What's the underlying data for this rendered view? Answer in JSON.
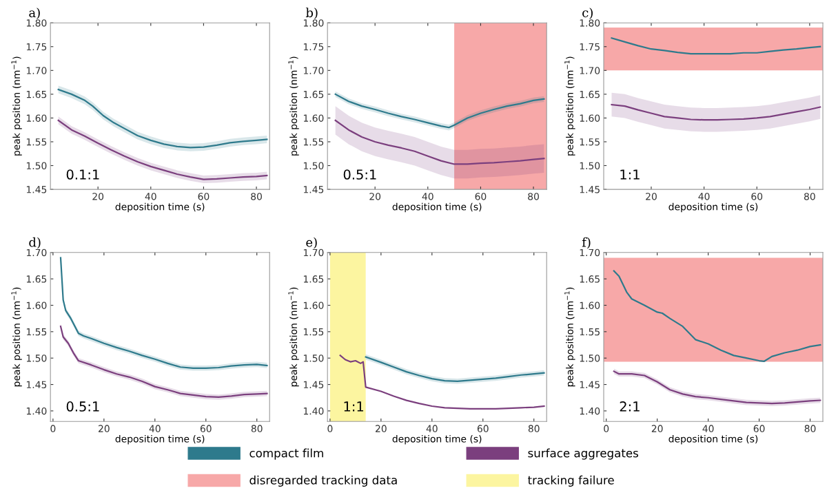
{
  "chart_data": [
    {
      "type": "line",
      "title": "a)",
      "xlabel": "deposition time (s)",
      "ylabel": "peak position (nm$^{−1}$)",
      "xlim": [
        2,
        85
      ],
      "xticks": [
        20,
        40,
        60,
        80
      ],
      "ylim": [
        1.45,
        1.8
      ],
      "yticks": [
        {
          "value": 1.45,
          "label": "1.45"
        },
        {
          "value": 1.5,
          "label": "1.50"
        },
        {
          "value": 1.55,
          "label": "1.55"
        },
        {
          "value": 1.6,
          "label": "1.60"
        },
        {
          "value": 1.65,
          "label": "1.65"
        },
        {
          "value": 1.7,
          "label": "1.70"
        },
        {
          "value": 1.75,
          "label": "1.75"
        },
        {
          "value": 1.8,
          "label": "1.80"
        }
      ],
      "grid": false,
      "marker": "none",
      "legend": "bottom",
      "annotations": [
        "0.1:1"
      ],
      "series": [
        {
          "name": "compact film",
          "color": "#2e7a8c",
          "x": [
            5,
            10,
            15,
            18,
            22,
            26,
            30,
            35,
            40,
            45,
            50,
            55,
            60,
            65,
            70,
            75,
            80,
            84
          ],
          "values": [
            1.66,
            1.65,
            1.637,
            1.625,
            1.605,
            1.59,
            1.578,
            1.563,
            1.553,
            1.545,
            1.54,
            1.538,
            1.539,
            1.543,
            1.548,
            1.551,
            1.553,
            1.555
          ],
          "lower": [
            1.652,
            1.642,
            1.629,
            1.617,
            1.597,
            1.582,
            1.57,
            1.555,
            1.545,
            1.537,
            1.532,
            1.53,
            1.531,
            1.535,
            1.54,
            1.543,
            1.545,
            1.547
          ],
          "upper": [
            1.668,
            1.658,
            1.645,
            1.633,
            1.613,
            1.598,
            1.586,
            1.571,
            1.561,
            1.553,
            1.548,
            1.546,
            1.547,
            1.551,
            1.556,
            1.559,
            1.561,
            1.563
          ]
        },
        {
          "name": "surface aggregates",
          "color": "#7b3f7e",
          "x": [
            5,
            10,
            15,
            20,
            25,
            30,
            35,
            40,
            45,
            50,
            55,
            60,
            65,
            70,
            75,
            80,
            84
          ],
          "values": [
            1.595,
            1.575,
            1.562,
            1.547,
            1.533,
            1.52,
            1.508,
            1.498,
            1.49,
            1.482,
            1.476,
            1.471,
            1.472,
            1.474,
            1.476,
            1.477,
            1.479
          ],
          "lower": [
            1.587,
            1.567,
            1.554,
            1.539,
            1.525,
            1.512,
            1.5,
            1.49,
            1.482,
            1.474,
            1.468,
            1.463,
            1.464,
            1.466,
            1.468,
            1.469,
            1.471
          ],
          "upper": [
            1.603,
            1.583,
            1.57,
            1.555,
            1.541,
            1.528,
            1.516,
            1.506,
            1.498,
            1.49,
            1.484,
            1.479,
            1.48,
            1.482,
            1.484,
            1.485,
            1.487
          ]
        }
      ]
    },
    {
      "type": "line",
      "title": "b)",
      "xlabel": "deposition time (s)",
      "ylabel": "peak position (nm$^{−1}$)",
      "xlim": [
        2,
        85
      ],
      "xticks": [
        20,
        40,
        60,
        80
      ],
      "ylim": [
        1.45,
        1.8
      ],
      "yticks": [
        {
          "value": 1.45,
          "label": "1.45"
        },
        {
          "value": 1.5,
          "label": "1.50"
        },
        {
          "value": 1.55,
          "label": "1.55"
        },
        {
          "value": 1.6,
          "label": "1.60"
        },
        {
          "value": 1.65,
          "label": "1.65"
        },
        {
          "value": 1.7,
          "label": "1.70"
        },
        {
          "value": 1.75,
          "label": "1.75"
        },
        {
          "value": 1.8,
          "label": "1.80"
        }
      ],
      "grid": false,
      "marker": "none",
      "annotations": [
        "0.5:1"
      ],
      "bands": [
        {
          "axis": "x",
          "from": 50,
          "to": 85,
          "color": "#f7a8a8",
          "label": "disregarded tracking data"
        }
      ],
      "series": [
        {
          "color": "#2e7a8c",
          "x": [
            5,
            10,
            15,
            20,
            25,
            30,
            35,
            40,
            45,
            48,
            50,
            55,
            60,
            65,
            70,
            75,
            80,
            84
          ],
          "values": [
            1.65,
            1.635,
            1.625,
            1.618,
            1.61,
            1.603,
            1.597,
            1.59,
            1.583,
            1.58,
            1.585,
            1.6,
            1.61,
            1.618,
            1.625,
            1.63,
            1.637,
            1.64
          ],
          "lower": [
            1.644,
            1.629,
            1.619,
            1.612,
            1.604,
            1.597,
            1.591,
            1.584,
            1.577,
            1.574,
            1.579,
            1.594,
            1.604,
            1.612,
            1.619,
            1.624,
            1.631,
            1.634
          ],
          "upper": [
            1.656,
            1.641,
            1.631,
            1.624,
            1.616,
            1.609,
            1.603,
            1.596,
            1.589,
            1.586,
            1.591,
            1.606,
            1.616,
            1.624,
            1.631,
            1.636,
            1.643,
            1.646
          ]
        },
        {
          "color": "#7b3f7e",
          "x": [
            5,
            10,
            15,
            20,
            25,
            30,
            35,
            40,
            45,
            50,
            55,
            60,
            65,
            70,
            75,
            80,
            84
          ],
          "values": [
            1.595,
            1.575,
            1.56,
            1.55,
            1.543,
            1.537,
            1.53,
            1.52,
            1.51,
            1.503,
            1.503,
            1.505,
            1.506,
            1.508,
            1.51,
            1.513,
            1.515
          ],
          "lower": [
            1.565,
            1.545,
            1.53,
            1.52,
            1.513,
            1.507,
            1.5,
            1.49,
            1.48,
            1.473,
            1.473,
            1.475,
            1.476,
            1.478,
            1.48,
            1.483,
            1.485
          ],
          "upper": [
            1.625,
            1.605,
            1.59,
            1.58,
            1.573,
            1.567,
            1.56,
            1.55,
            1.54,
            1.533,
            1.533,
            1.535,
            1.536,
            1.538,
            1.54,
            1.543,
            1.545
          ]
        }
      ]
    },
    {
      "type": "line",
      "title": "c)",
      "xlabel": "deposition time (s)",
      "ylabel": "peak position (nm$^{−1}$)",
      "xlim": [
        2,
        85
      ],
      "xticks": [
        20,
        40,
        60,
        80
      ],
      "ylim": [
        1.45,
        1.8
      ],
      "yticks": [
        {
          "value": 1.45,
          "label": "1.45"
        },
        {
          "value": 1.5,
          "label": "1.50"
        },
        {
          "value": 1.55,
          "label": "1.55"
        },
        {
          "value": 1.6,
          "label": "1.60"
        },
        {
          "value": 1.65,
          "label": "1.65"
        },
        {
          "value": 1.7,
          "label": "1.70"
        },
        {
          "value": 1.75,
          "label": "1.75"
        },
        {
          "value": 1.8,
          "label": "1.80"
        }
      ],
      "grid": false,
      "marker": "none",
      "annotations": [
        "1:1"
      ],
      "bands": [
        {
          "axis": "y",
          "from": 1.7,
          "to": 1.79,
          "color": "#f7a8a8"
        }
      ],
      "series": [
        {
          "color": "#2e7a8c",
          "x": [
            5,
            10,
            15,
            20,
            25,
            30,
            35,
            40,
            45,
            50,
            55,
            60,
            65,
            70,
            75,
            80,
            84
          ],
          "values": [
            1.768,
            1.76,
            1.752,
            1.745,
            1.742,
            1.738,
            1.735,
            1.735,
            1.735,
            1.735,
            1.737,
            1.737,
            1.74,
            1.743,
            1.745,
            1.748,
            1.75
          ]
        },
        {
          "color": "#7b3f7e",
          "x": [
            5,
            10,
            15,
            20,
            25,
            30,
            35,
            40,
            45,
            50,
            55,
            60,
            65,
            70,
            75,
            80,
            84
          ],
          "values": [
            1.628,
            1.625,
            1.617,
            1.61,
            1.603,
            1.6,
            1.597,
            1.596,
            1.596,
            1.597,
            1.598,
            1.6,
            1.603,
            1.608,
            1.613,
            1.618,
            1.623
          ],
          "lower": [
            1.603,
            1.6,
            1.592,
            1.585,
            1.578,
            1.575,
            1.572,
            1.571,
            1.571,
            1.572,
            1.573,
            1.575,
            1.578,
            1.583,
            1.588,
            1.593,
            1.598
          ],
          "upper": [
            1.653,
            1.65,
            1.642,
            1.635,
            1.628,
            1.625,
            1.622,
            1.621,
            1.621,
            1.622,
            1.623,
            1.625,
            1.628,
            1.633,
            1.638,
            1.643,
            1.648
          ]
        }
      ]
    },
    {
      "type": "line",
      "title": "d)",
      "xlabel": "deposition time (s)",
      "ylabel": "peak position (nm$^{−1}$)",
      "xlim": [
        -1,
        85
      ],
      "xticks": [
        0,
        20,
        40,
        60,
        80
      ],
      "ylim": [
        1.38,
        1.7
      ],
      "yticks": [
        {
          "value": 1.4,
          "label": "1.40"
        },
        {
          "value": 1.45,
          "label": "1.45"
        },
        {
          "value": 1.5,
          "label": "1.50"
        },
        {
          "value": 1.55,
          "label": "1.55"
        },
        {
          "value": 1.6,
          "label": "1.60"
        },
        {
          "value": 1.65,
          "label": "1.65"
        },
        {
          "value": 1.7,
          "label": "1.70"
        }
      ],
      "grid": false,
      "marker": "none",
      "annotations": [
        "0.5:1"
      ],
      "series": [
        {
          "color": "#2e7a8c",
          "x": [
            3,
            4,
            5,
            7,
            10,
            12,
            15,
            20,
            25,
            30,
            35,
            40,
            45,
            50,
            55,
            60,
            65,
            70,
            75,
            80,
            84
          ],
          "values": [
            1.69,
            1.61,
            1.59,
            1.575,
            1.547,
            1.542,
            1.537,
            1.528,
            1.52,
            1.513,
            1.505,
            1.498,
            1.49,
            1.483,
            1.481,
            1.481,
            1.482,
            1.485,
            1.487,
            1.488,
            1.486
          ],
          "lower": [
            1.685,
            1.605,
            1.585,
            1.57,
            1.542,
            1.537,
            1.532,
            1.523,
            1.515,
            1.508,
            1.5,
            1.493,
            1.485,
            1.478,
            1.476,
            1.476,
            1.477,
            1.48,
            1.482,
            1.483,
            1.481
          ],
          "upper": [
            1.695,
            1.615,
            1.595,
            1.58,
            1.552,
            1.547,
            1.542,
            1.533,
            1.525,
            1.518,
            1.51,
            1.503,
            1.495,
            1.488,
            1.486,
            1.486,
            1.487,
            1.49,
            1.492,
            1.493,
            1.491
          ]
        },
        {
          "color": "#7b3f7e",
          "x": [
            3,
            4,
            6,
            8,
            10,
            15,
            20,
            25,
            30,
            35,
            40,
            45,
            50,
            55,
            60,
            65,
            70,
            75,
            80,
            84
          ],
          "values": [
            1.56,
            1.54,
            1.528,
            1.51,
            1.495,
            1.487,
            1.478,
            1.47,
            1.464,
            1.456,
            1.446,
            1.44,
            1.433,
            1.43,
            1.427,
            1.426,
            1.428,
            1.431,
            1.432,
            1.433
          ],
          "lower": [
            1.555,
            1.535,
            1.523,
            1.505,
            1.49,
            1.482,
            1.473,
            1.465,
            1.459,
            1.451,
            1.441,
            1.435,
            1.428,
            1.425,
            1.422,
            1.421,
            1.423,
            1.426,
            1.427,
            1.428
          ],
          "upper": [
            1.565,
            1.545,
            1.533,
            1.515,
            1.5,
            1.492,
            1.483,
            1.475,
            1.469,
            1.461,
            1.451,
            1.445,
            1.438,
            1.435,
            1.432,
            1.431,
            1.433,
            1.436,
            1.437,
            1.438
          ]
        }
      ]
    },
    {
      "type": "line",
      "title": "e)",
      "xlabel": "deposition time (s)",
      "ylabel": "peak position (nm$^{−1}$)",
      "xlim": [
        -1,
        85
      ],
      "xticks": [
        0,
        20,
        40,
        60,
        80
      ],
      "ylim": [
        1.38,
        1.7
      ],
      "yticks": [
        {
          "value": 1.4,
          "label": "1.40"
        },
        {
          "value": 1.45,
          "label": "1.45"
        },
        {
          "value": 1.5,
          "label": "1.50"
        },
        {
          "value": 1.55,
          "label": "1.55"
        },
        {
          "value": 1.6,
          "label": "1.60"
        },
        {
          "value": 1.65,
          "label": "1.65"
        },
        {
          "value": 1.7,
          "label": "1.70"
        }
      ],
      "grid": false,
      "marker": "none",
      "annotations": [
        "1:1"
      ],
      "bands": [
        {
          "axis": "x",
          "from": 0,
          "to": 14,
          "color": "#fcf5a0",
          "label": "tracking failure"
        }
      ],
      "series": [
        {
          "color": "#2e7a8c",
          "x": [
            14,
            20,
            25,
            30,
            35,
            40,
            45,
            50,
            55,
            60,
            65,
            70,
            75,
            80,
            84
          ],
          "values": [
            1.502,
            1.492,
            1.483,
            1.474,
            1.467,
            1.461,
            1.457,
            1.456,
            1.458,
            1.46,
            1.462,
            1.465,
            1.468,
            1.47,
            1.472
          ],
          "lower": [
            1.497,
            1.487,
            1.478,
            1.469,
            1.462,
            1.456,
            1.452,
            1.451,
            1.453,
            1.455,
            1.457,
            1.46,
            1.463,
            1.465,
            1.467
          ],
          "upper": [
            1.507,
            1.497,
            1.488,
            1.479,
            1.472,
            1.466,
            1.462,
            1.461,
            1.463,
            1.465,
            1.467,
            1.47,
            1.473,
            1.475,
            1.477
          ]
        },
        {
          "color": "#7b3f7e",
          "x": [
            4,
            6,
            8,
            10,
            12,
            13,
            14,
            20,
            25,
            30,
            35,
            40,
            45,
            50,
            55,
            60,
            65,
            70,
            75,
            80,
            84
          ],
          "values": [
            1.505,
            1.497,
            1.493,
            1.495,
            1.49,
            1.493,
            1.445,
            1.437,
            1.428,
            1.42,
            1.414,
            1.409,
            1.406,
            1.405,
            1.404,
            1.404,
            1.404,
            1.405,
            1.406,
            1.407,
            1.409
          ]
        }
      ]
    },
    {
      "type": "line",
      "title": "f)",
      "xlabel": "deposition time (s)",
      "ylabel": "peak position (nm$^{−1}$)",
      "xlim": [
        -1,
        85
      ],
      "xticks": [
        0,
        20,
        40,
        60,
        80
      ],
      "ylim": [
        1.38,
        1.7
      ],
      "yticks": [
        {
          "value": 1.4,
          "label": "1.40"
        },
        {
          "value": 1.45,
          "label": "1.45"
        },
        {
          "value": 1.5,
          "label": "1.50"
        },
        {
          "value": 1.55,
          "label": "1.55"
        },
        {
          "value": 1.6,
          "label": "1.60"
        },
        {
          "value": 1.65,
          "label": "1.65"
        },
        {
          "value": 1.7,
          "label": "1.70"
        }
      ],
      "grid": false,
      "marker": "none",
      "annotations": [
        "2:1"
      ],
      "bands": [
        {
          "axis": "y",
          "from": 1.493,
          "to": 1.69,
          "color": "#f7a8a8"
        }
      ],
      "series": [
        {
          "color": "#2e7a8c",
          "x": [
            3,
            5,
            8,
            10,
            15,
            20,
            22,
            25,
            30,
            35,
            40,
            45,
            50,
            55,
            60,
            62,
            65,
            70,
            75,
            80,
            84
          ],
          "values": [
            1.665,
            1.655,
            1.625,
            1.612,
            1.6,
            1.587,
            1.585,
            1.575,
            1.56,
            1.535,
            1.527,
            1.515,
            1.505,
            1.5,
            1.495,
            1.494,
            1.503,
            1.51,
            1.515,
            1.522,
            1.525
          ]
        },
        {
          "color": "#7b3f7e",
          "x": [
            3,
            5,
            10,
            15,
            20,
            25,
            30,
            35,
            40,
            45,
            50,
            55,
            60,
            65,
            70,
            75,
            80,
            84
          ],
          "values": [
            1.475,
            1.47,
            1.47,
            1.467,
            1.455,
            1.44,
            1.432,
            1.427,
            1.425,
            1.422,
            1.419,
            1.416,
            1.415,
            1.414,
            1.415,
            1.417,
            1.419,
            1.42
          ],
          "lower": [
            1.47,
            1.465,
            1.465,
            1.462,
            1.45,
            1.435,
            1.427,
            1.422,
            1.42,
            1.417,
            1.414,
            1.411,
            1.41,
            1.409,
            1.41,
            1.412,
            1.414,
            1.415
          ],
          "upper": [
            1.48,
            1.475,
            1.475,
            1.472,
            1.46,
            1.445,
            1.437,
            1.432,
            1.43,
            1.427,
            1.424,
            1.421,
            1.42,
            1.419,
            1.42,
            1.422,
            1.424,
            1.425
          ]
        }
      ]
    }
  ]
}
